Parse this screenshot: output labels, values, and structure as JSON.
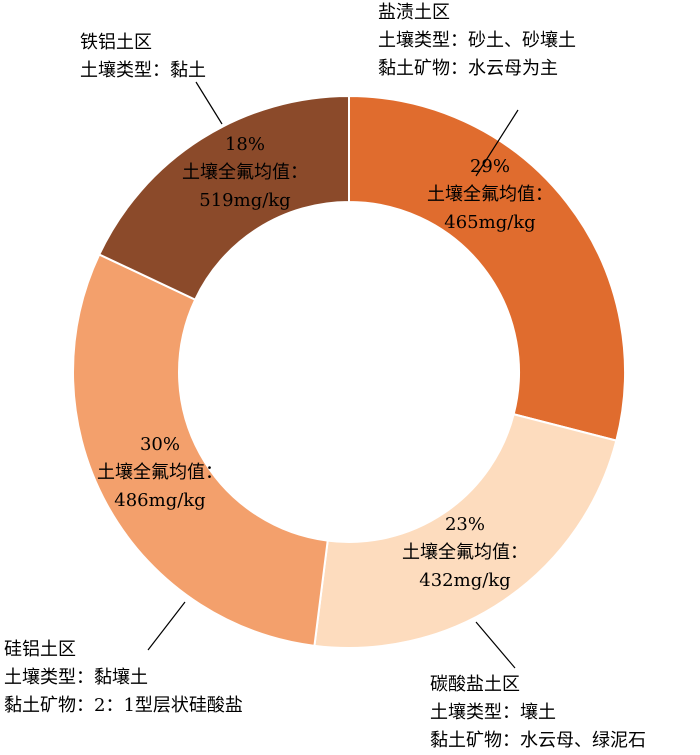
{
  "chart_data": {
    "type": "pie",
    "donut": true,
    "slices": [
      {
        "value": 29,
        "color": "#E06C2E",
        "pct_label": "29%",
        "inner_text": "土壤全氟均值：",
        "mean_value": "465mg/kg",
        "region": "盐渍土区",
        "notes": [
          "土壤类型：砂土、砂壤土",
          "黏土矿物：水云母为主"
        ]
      },
      {
        "value": 23,
        "color": "#FDDCBE",
        "pct_label": "23%",
        "inner_text": "土壤全氟均值：",
        "mean_value": "432mg/kg",
        "region": "碳酸盐土区",
        "notes": [
          "土壤类型：壤土",
          "黏土矿物：水云母、绿泥石"
        ]
      },
      {
        "value": 30,
        "color": "#F3A06C",
        "pct_label": "30%",
        "inner_text": "土壤全氟均值：",
        "mean_value": "486mg/kg",
        "region": "硅铝土区",
        "notes": [
          "土壤类型：黏壤土",
          "黏土矿物：2：1型层状硅酸盐"
        ]
      },
      {
        "value": 18,
        "color": "#8B4A2A",
        "pct_label": "18%",
        "inner_text": "土壤全氟均值：",
        "mean_value": "519mg/kg",
        "region": "铁铝土区",
        "notes": [
          "土壤类型：黏土"
        ]
      }
    ]
  }
}
